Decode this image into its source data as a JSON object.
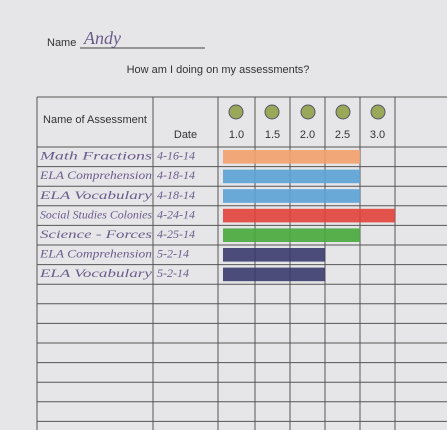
{
  "header": {
    "name_label": "Name",
    "name": "Andy",
    "title": "How am I doing on my assessments?"
  },
  "table": {
    "columns": [
      "Name of Assessment",
      "Date",
      "1.0",
      "1.5",
      "2.0",
      "2.5",
      "3.0"
    ],
    "rows": [
      {
        "assessment": "Math Fractions",
        "date": "4-16-14",
        "level": 2.5,
        "color": "#f2a06a"
      },
      {
        "assessment": "ELA Comprehension",
        "date": "4-18-14",
        "level": 2.5,
        "color": "#5aa2d6"
      },
      {
        "assessment": "ELA Vocabulary",
        "date": "4-18-14",
        "level": 2.5,
        "color": "#5aa2d6"
      },
      {
        "assessment": "Social Studies Colonies",
        "date": "4-24-14",
        "level": 3.0,
        "color": "#e2413a"
      },
      {
        "assessment": "Science - Forces",
        "date": "4-25-14",
        "level": 2.5,
        "color": "#47a83a"
      },
      {
        "assessment": "ELA Comprehension",
        "date": "5-2-14",
        "level": 2.0,
        "color": "#3b3b6e"
      },
      {
        "assessment": "ELA Vocabulary",
        "date": "5-2-14",
        "level": 2.0,
        "color": "#3b3b6e"
      }
    ]
  }
}
